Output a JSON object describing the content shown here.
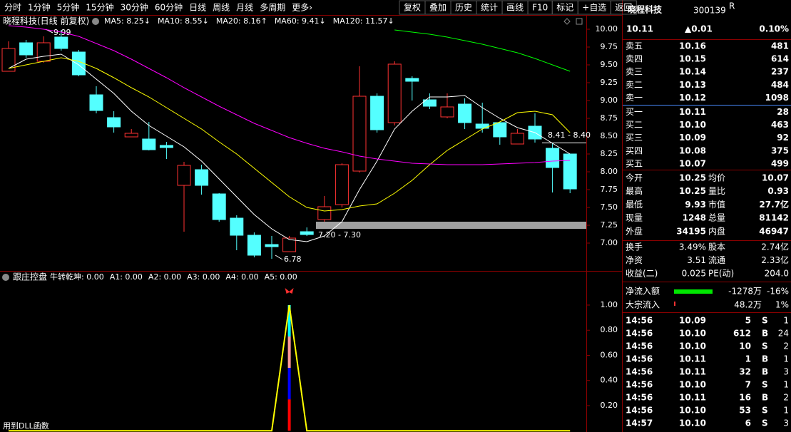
{
  "toolbar": {
    "left": [
      "分时",
      "1分钟",
      "5分钟",
      "15分钟",
      "30分钟",
      "60分钟",
      "日线",
      "周线",
      "月线",
      "多周期",
      "更多›"
    ],
    "right": [
      "复权",
      "叠加",
      "历史",
      "统计",
      "画线",
      "F10",
      "标记",
      "+自选",
      "返回"
    ]
  },
  "main": {
    "title": "晓程科技(日线 前复权)",
    "candles": {
      "open": [
        9.41,
        9.81,
        9.55,
        9.89,
        9.68,
        9.08,
        8.76,
        8.49,
        8.46,
        8.37,
        7.81,
        8.03,
        7.69,
        7.35,
        7.11,
        6.98,
        6.88,
        7.16,
        7.33,
        7.54,
        8.01,
        9.06,
        8.69,
        9.31,
        9.01,
        8.77,
        8.95,
        8.67,
        8.69,
        8.39,
        8.64,
        8.33,
        8.25
      ],
      "high": [
        9.83,
        9.85,
        9.9,
        9.99,
        9.71,
        9.2,
        8.85,
        8.6,
        8.7,
        8.42,
        8.14,
        8.1,
        7.7,
        7.39,
        7.15,
        7.1,
        7.1,
        7.22,
        7.66,
        8.12,
        9.48,
        9.1,
        9.55,
        9.34,
        9.1,
        9.1,
        9.03,
        8.97,
        8.7,
        8.6,
        8.82,
        8.4,
        8.25
      ],
      "low": [
        9.41,
        9.6,
        9.53,
        9.7,
        9.34,
        8.82,
        8.55,
        8.49,
        8.3,
        8.18,
        7.16,
        7.68,
        7.3,
        6.9,
        6.8,
        6.78,
        6.88,
        7.1,
        7.3,
        7.5,
        7.99,
        8.55,
        8.65,
        9.0,
        8.88,
        8.75,
        8.6,
        8.55,
        8.38,
        8.39,
        8.41,
        7.71,
        7.7
      ],
      "close": [
        9.73,
        9.64,
        9.81,
        9.73,
        9.36,
        8.86,
        8.63,
        8.54,
        8.31,
        8.34,
        8.09,
        7.81,
        7.33,
        7.11,
        6.83,
        6.95,
        7.07,
        7.12,
        7.51,
        8.1,
        9.06,
        8.59,
        9.51,
        9.27,
        8.92,
        8.91,
        8.69,
        8.61,
        8.49,
        8.54,
        8.46,
        8.06,
        7.76
      ]
    },
    "ma": [
      {
        "label": "MA5: 8.25↓",
        "color": "#ffffff",
        "values": [
          9.45,
          9.58,
          9.62,
          9.65,
          9.5,
          9.3,
          9.1,
          8.85,
          8.65,
          8.5,
          8.35,
          8.15,
          7.9,
          7.65,
          7.4,
          7.2,
          7.05,
          7.02,
          7.1,
          7.3,
          7.75,
          8.15,
          8.6,
          8.85,
          9.05,
          9.05,
          9.07,
          8.9,
          8.75,
          8.62,
          8.55,
          8.4,
          8.25
        ]
      },
      {
        "label": "MA10: 8.55↓",
        "color": "#ffff00",
        "values": [
          9.45,
          9.5,
          9.55,
          9.6,
          9.55,
          9.45,
          9.32,
          9.18,
          9.05,
          8.9,
          8.75,
          8.6,
          8.42,
          8.25,
          8.05,
          7.85,
          7.65,
          7.5,
          7.45,
          7.47,
          7.52,
          7.55,
          7.7,
          7.88,
          8.1,
          8.3,
          8.45,
          8.6,
          8.7,
          8.83,
          8.85,
          8.8,
          8.55
        ]
      },
      {
        "label": "MA20: 8.16↑",
        "color": "#ff00ff",
        "values": [
          10.05,
          10.03,
          10.0,
          9.96,
          9.9,
          9.8,
          9.7,
          9.58,
          9.45,
          9.32,
          9.18,
          9.05,
          8.92,
          8.8,
          8.68,
          8.58,
          8.48,
          8.4,
          8.33,
          8.28,
          8.22,
          8.18,
          8.15,
          8.12,
          8.11,
          8.1,
          8.1,
          8.1,
          8.11,
          8.12,
          8.13,
          8.15,
          8.16
        ]
      },
      {
        "label": "MA60: 9.41↓",
        "color": "#00ff00",
        "values": [
          null,
          null,
          null,
          null,
          null,
          null,
          null,
          null,
          null,
          null,
          null,
          null,
          null,
          null,
          null,
          null,
          null,
          null,
          null,
          null,
          null,
          null,
          9.99,
          9.96,
          9.93,
          9.89,
          9.84,
          9.79,
          9.73,
          9.67,
          9.59,
          9.5,
          9.41
        ]
      },
      {
        "label": "MA120: 11.57↓",
        "color": "#e0e0e0"
      }
    ],
    "ylim": [
      6.63,
      10.13
    ],
    "yticks": [
      {
        "value": 10,
        "label": "10.00"
      },
      {
        "value": 9.75,
        "label": "9.75"
      },
      {
        "value": 9.5,
        "label": "9.50"
      },
      {
        "value": 9.25,
        "label": "9.25"
      },
      {
        "value": 9,
        "label": "9.00"
      },
      {
        "value": 8.75,
        "label": "8.75"
      },
      {
        "value": 8.5,
        "label": "8.50"
      },
      {
        "value": 8.25,
        "label": "8.25"
      },
      {
        "value": 8,
        "label": "8.00"
      },
      {
        "value": 7.75,
        "label": "7.75"
      },
      {
        "value": 7.5,
        "label": "7.50"
      },
      {
        "value": 7.25,
        "label": "7.25"
      },
      {
        "value": 7,
        "label": "7.00"
      }
    ],
    "annotations": [
      "9.99",
      "6.78"
    ],
    "zones": [
      {
        "label": "7.20 - 7.30",
        "low": 7.2,
        "high": 7.3,
        "color": "#a0a0a0"
      },
      {
        "label": "8.41 - 8.40",
        "low": 8.4,
        "high": 8.41,
        "color": "#ffffff"
      }
    ]
  },
  "indicator": {
    "title": "跟庄控盘",
    "legend": [
      {
        "label": "牛转乾坤: 0.00",
        "color": "#ffff00"
      },
      {
        "label": "A1: 0.00",
        "color": "#ffff99"
      },
      {
        "label": "A2: 0.00",
        "color": "#00ffff"
      },
      {
        "label": "A3: 0.00",
        "color": "#ff9999"
      },
      {
        "label": "A4: 0.00",
        "color": "#3355ff"
      },
      {
        "label": "A5: 0.00",
        "color": "#ff3333"
      }
    ],
    "line": {
      "color": "#ffff00",
      "values": [
        0,
        0,
        0,
        0,
        0,
        0,
        0,
        0,
        0,
        0,
        0,
        0,
        0,
        0,
        0,
        0,
        1,
        0,
        0,
        0,
        0,
        0,
        0,
        0,
        0,
        0,
        0,
        0,
        0,
        0,
        0,
        0,
        0
      ]
    },
    "bar_segments": [
      {
        "color": "#ff0000",
        "value": 0.25
      },
      {
        "color": "#0000ff",
        "value": 0.25
      },
      {
        "color": "#ff9999",
        "value": 0.25
      },
      {
        "color": "#00ffff",
        "value": 0.25
      }
    ],
    "ylim": [
      -0.01,
      1.17
    ],
    "yticks": [
      {
        "value": 1,
        "label": "1.00"
      },
      {
        "value": 0.8,
        "label": "0.80"
      },
      {
        "value": 0.6,
        "label": "0.60"
      },
      {
        "value": 0.4,
        "label": "0.40"
      },
      {
        "value": 0.2,
        "label": "0.20"
      }
    ],
    "footer": "用到DLL函数"
  },
  "quote": {
    "name": "晓程科技",
    "code": "300139",
    "badge": "R",
    "price": "10.11",
    "change": "▲0.01",
    "percent": "0.10%",
    "order_book": [
      {
        "label": "卖五",
        "price": "10.16",
        "volume": "481",
        "color": "#ff3232"
      },
      {
        "label": "卖四",
        "price": "10.15",
        "volume": "614",
        "color": "#ff3232"
      },
      {
        "label": "卖三",
        "price": "10.14",
        "volume": "237",
        "color": "#ff3232"
      },
      {
        "label": "卖二",
        "price": "10.13",
        "volume": "484",
        "color": "#ff3232"
      },
      {
        "label": "卖一",
        "price": "10.12",
        "volume": "1098",
        "color": "#ff3232"
      },
      {
        "label": "买一",
        "price": "10.11",
        "volume": "28",
        "color": "#ff3232"
      },
      {
        "label": "买二",
        "price": "10.10",
        "volume": "463",
        "color": "#ffffff"
      },
      {
        "label": "买三",
        "price": "10.09",
        "volume": "92",
        "color": "#00e600"
      },
      {
        "label": "买四",
        "price": "10.08",
        "volume": "375",
        "color": "#00e600"
      },
      {
        "label": "买五",
        "price": "10.07",
        "volume": "499",
        "color": "#00e600"
      }
    ],
    "stats": [
      {
        "label": "今开",
        "value": "10.25",
        "color": "#ff3232",
        "label2": "均价",
        "value2": "10.07",
        "color2": "#00e600"
      },
      {
        "label": "最高",
        "value": "10.25",
        "color": "#ff3232",
        "label2": "量比",
        "value2": "0.93",
        "color2": "#00e600"
      },
      {
        "label": "最低",
        "value": "9.93",
        "color": "#00e600",
        "label2": "市值",
        "value2": "27.7亿",
        "color2": "#ffffff"
      },
      {
        "label": "现量",
        "value": "1248",
        "color": "#ff00ff",
        "label2": "总量",
        "value2": "81142",
        "color2": "#ffffff"
      },
      {
        "label": "外盘",
        "value": "34195",
        "color": "#ff3232",
        "label2": "内盘",
        "value2": "46947",
        "color2": "#00e600"
      }
    ],
    "finance": [
      {
        "label": "换手",
        "value": "3.49%",
        "label2": "股本",
        "value2": "2.74亿"
      },
      {
        "label": "净资",
        "value": "3.51",
        "label2": "流通",
        "value2": "2.33亿"
      },
      {
        "label": "收益(二)",
        "value": "0.025",
        "label2": "PE(动)",
        "value2": "204.0"
      }
    ],
    "flows": [
      {
        "label": "净流入额",
        "amount": "-1278万",
        "percent": "-16%",
        "color": "#00e600"
      },
      {
        "label": "大宗流入",
        "amount": "48.2万",
        "percent": "1%",
        "color": "#ff3232"
      }
    ],
    "ticks": [
      {
        "time": "14:56",
        "price": "10.09",
        "volume": "5",
        "side": "S",
        "count": "1"
      },
      {
        "time": "14:56",
        "price": "10.10",
        "volume": "612",
        "side": "B",
        "count": "24"
      },
      {
        "time": "14:56",
        "price": "10.10",
        "volume": "10",
        "side": "S",
        "count": "2"
      },
      {
        "time": "14:56",
        "price": "10.11",
        "volume": "1",
        "side": "B",
        "count": "1"
      },
      {
        "time": "14:56",
        "price": "10.11",
        "volume": "32",
        "side": "B",
        "count": "3"
      },
      {
        "time": "14:56",
        "price": "10.10",
        "volume": "7",
        "side": "S",
        "count": "1"
      },
      {
        "time": "14:56",
        "price": "10.11",
        "volume": "16",
        "side": "B",
        "count": "2"
      },
      {
        "time": "14:56",
        "price": "10.10",
        "volume": "53",
        "side": "S",
        "count": "1"
      },
      {
        "time": "14:57",
        "price": "10.10",
        "volume": "6",
        "side": "S",
        "count": "3"
      }
    ]
  }
}
